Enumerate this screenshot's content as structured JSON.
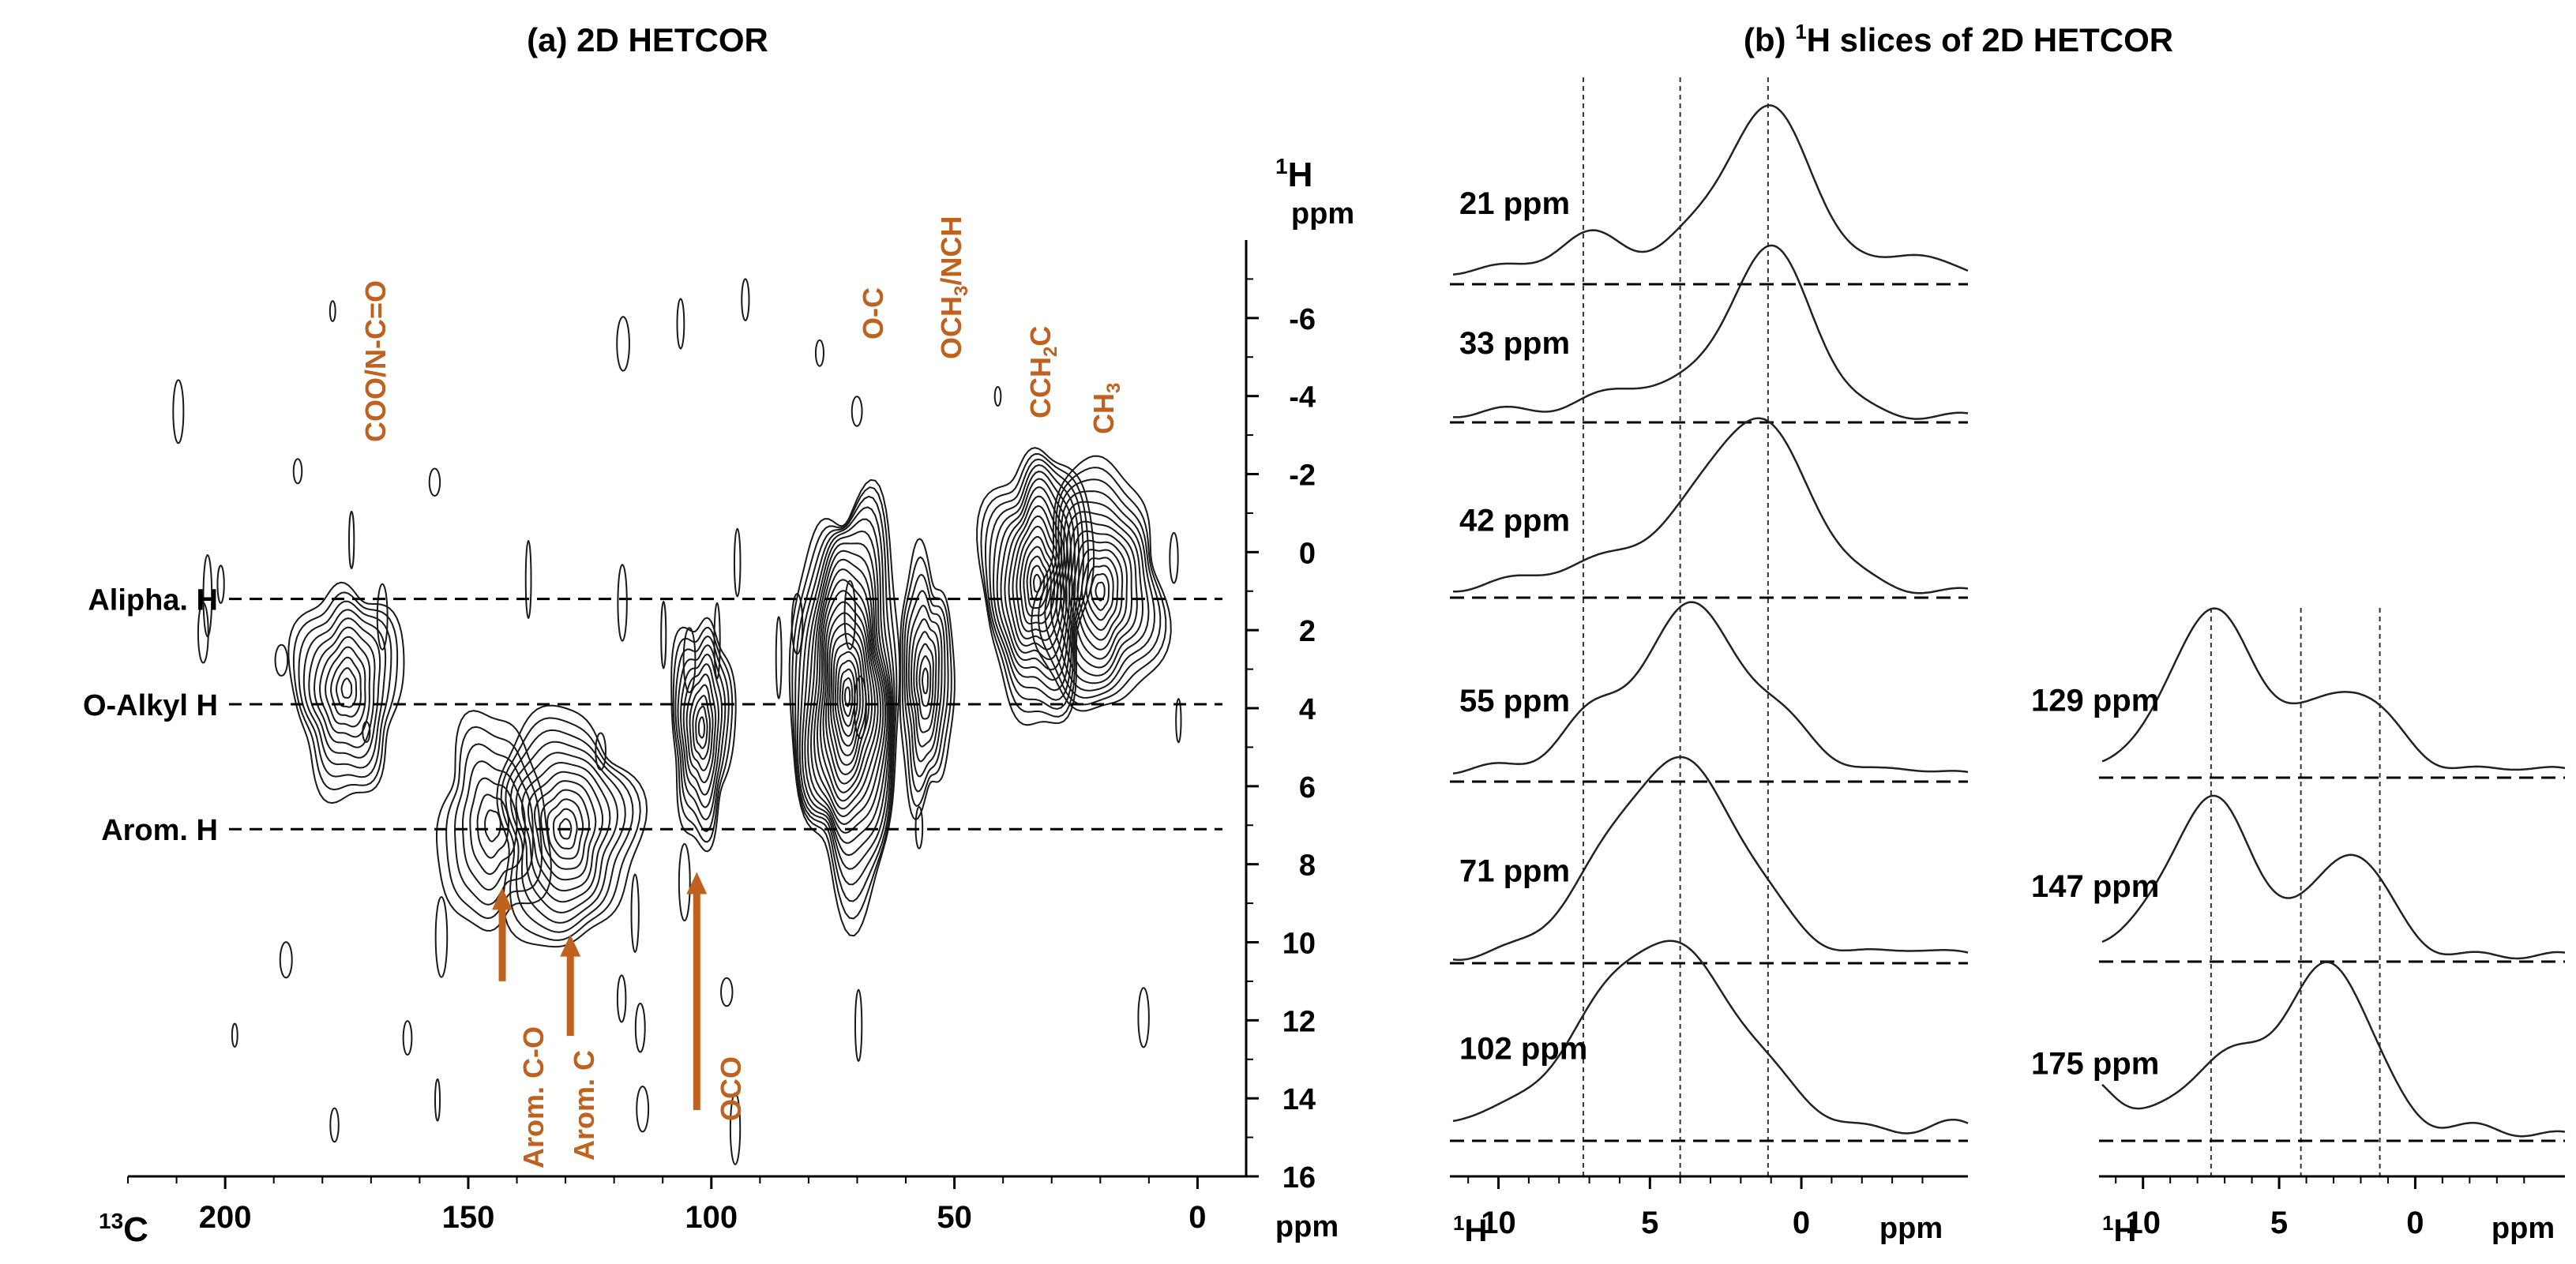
{
  "colors": {
    "annotation": "#c0621f",
    "contour": "#1a1a1a",
    "axis": "#000000"
  },
  "chart_data": [
    {
      "panel": "a",
      "type": "heatmap",
      "subtype": "2D contour plot",
      "title": "(a) 2D HETCOR",
      "xlabel_prefix": "13",
      "xlabel_element": "C",
      "xunit": "ppm",
      "xlim": [
        220,
        -10
      ],
      "xticks": [
        "200",
        "150",
        "100",
        "50",
        "0"
      ],
      "xtick_values": [
        200,
        150,
        100,
        50,
        0
      ],
      "ylabel_prefix": "1",
      "ylabel_element": "H",
      "yunit": "ppm",
      "ylim": [
        -8,
        16
      ],
      "yticks": [
        "-6",
        "-4",
        "-2",
        "0",
        "2",
        "4",
        "6",
        "8",
        "10",
        "12",
        "14",
        "16"
      ],
      "ytick_values": [
        -6,
        -4,
        -2,
        0,
        2,
        4,
        6,
        8,
        10,
        12,
        14,
        16
      ],
      "horizontal_lines": [
        {
          "label": "Alipha. H",
          "h_ppm": 1.2
        },
        {
          "label": "O-Alkyl H",
          "h_ppm": 3.9
        },
        {
          "label": "Arom. H",
          "h_ppm": 7.1
        }
      ],
      "peaks": [
        {
          "c_ppm": 175,
          "h_ppm": 3.5,
          "sx": 7,
          "sy": 1.7,
          "n": 11
        },
        {
          "c_ppm": 130,
          "h_ppm": 7.1,
          "sx": 9,
          "sy": 1.9,
          "n": 12
        },
        {
          "c_ppm": 145,
          "h_ppm": 7.0,
          "sx": 7,
          "sy": 1.7,
          "n": 7
        },
        {
          "c_ppm": 102,
          "h_ppm": 4.5,
          "sx": 4,
          "sy": 1.8,
          "n": 11
        },
        {
          "c_ppm": 72,
          "h_ppm": 3.7,
          "sx": 7,
          "sy": 3.3,
          "n": 22
        },
        {
          "c_ppm": 56,
          "h_ppm": 3.3,
          "sx": 3.5,
          "sy": 2.0,
          "n": 10
        },
        {
          "c_ppm": 33,
          "h_ppm": 0.8,
          "sx": 7,
          "sy": 2.2,
          "n": 16
        },
        {
          "c_ppm": 20,
          "h_ppm": 1.0,
          "sx": 8,
          "sy": 2.0,
          "n": 14
        }
      ],
      "peak_labels": [
        "COO/N-C=O",
        "O-C",
        "OCH3/NCH",
        "CCH2C",
        "CH3"
      ],
      "arrow_labels": [
        {
          "text": "Arom. C-O",
          "c_ppm": 143,
          "h_ppm": 8.6
        },
        {
          "text": "Arom. C",
          "c_ppm": 129,
          "h_ppm": 9.8
        },
        {
          "text": "OCO",
          "c_ppm": 103,
          "h_ppm": 8.2
        }
      ],
      "labels_text": {
        "coo": "COO/N-C=O",
        "oc": "O-C",
        "och_pre": "OCH",
        "och_sub": "3",
        "och_post": "/NCH",
        "cch_pre": "CCH",
        "cch_sub": "2",
        "cch_post": "C",
        "ch_pre": "CH",
        "ch_sub": "3",
        "aromco": "Arom. C-O",
        "aromc": "Arom. C",
        "oco": "OCO"
      }
    },
    {
      "panel": "b",
      "type": "line",
      "title_pre": "(b) ",
      "title_sup": "1",
      "title_post": "H slices of 2D HETCOR",
      "xlabel_prefix": "1",
      "xlabel_element": "H",
      "xunit": "ppm",
      "xlim": [
        11.5,
        -5.5
      ],
      "xticks": [
        "10",
        "5",
        "0"
      ],
      "xtick_values": [
        10,
        5,
        0
      ],
      "reference_lines_ppm": [
        7.2,
        4.0,
        1.1
      ],
      "right_reference_lines_ppm": [
        7.5,
        4.2,
        1.3
      ],
      "series": [
        {
          "name": "21 ppm",
          "column": "left",
          "peaks": [
            {
              "c": 1.1,
              "a": 1.0,
              "w": 1.5
            },
            {
              "c": 7.0,
              "a": 0.26,
              "w": 1.2
            },
            {
              "c": 4.1,
              "a": 0.12,
              "w": 1.0
            },
            {
              "c": 10.5,
              "a": 0.06,
              "w": 1.0
            },
            {
              "c": -3.8,
              "a": 0.15,
              "w": 0.9
            }
          ]
        },
        {
          "name": "33 ppm",
          "column": "left",
          "peaks": [
            {
              "c": 1.0,
              "a": 1.0,
              "w": 1.4
            },
            {
              "c": 5.2,
              "a": 0.18,
              "w": 1.8
            },
            {
              "c": 10.0,
              "a": 0.03,
              "w": 1.0
            }
          ]
        },
        {
          "name": "42 ppm",
          "column": "left",
          "peaks": [
            {
              "c": 1.4,
              "a": 1.0,
              "w": 1.7
            },
            {
              "c": 5.0,
              "a": 0.25,
              "w": 2.2
            },
            {
              "c": 9.0,
              "a": 0.05,
              "w": 1.5
            }
          ]
        },
        {
          "name": "55 ppm",
          "column": "left",
          "peaks": [
            {
              "c": 3.6,
              "a": 1.0,
              "w": 1.7
            },
            {
              "c": 7.2,
              "a": 0.28,
              "w": 1.0
            },
            {
              "c": 0.2,
              "a": 0.2,
              "w": 1.0
            },
            {
              "c": 10.5,
              "a": 0.06,
              "w": 0.8
            },
            {
              "c": -3.5,
              "a": 0.05,
              "w": 0.8
            }
          ]
        },
        {
          "name": "71 ppm",
          "column": "left",
          "peaks": [
            {
              "c": 4.0,
              "a": 1.0,
              "w": 2.1
            },
            {
              "c": 7.0,
              "a": 0.12,
              "w": 1.5
            },
            {
              "c": -3.8,
              "a": 0.05,
              "w": 0.8
            }
          ]
        },
        {
          "name": "102 ppm",
          "column": "left",
          "peaks": [
            {
              "c": 4.6,
              "a": 1.0,
              "w": 2.6
            },
            {
              "c": 11.2,
              "a": 0.06,
              "w": 0.9
            },
            {
              "c": -4.8,
              "a": 0.06,
              "w": 0.8
            }
          ]
        },
        {
          "name": "129 ppm",
          "column": "right",
          "peaks": [
            {
              "c": 7.5,
              "a": 1.0,
              "w": 1.5
            },
            {
              "c": 2.3,
              "a": 0.5,
              "w": 1.5
            },
            {
              "c": 4.8,
              "a": 0.12,
              "w": 1.0
            },
            {
              "c": 11.0,
              "a": 0.06,
              "w": 0.8
            },
            {
              "c": -3.8,
              "a": 0.03,
              "w": 0.8
            }
          ]
        },
        {
          "name": "147 ppm",
          "column": "right",
          "peaks": [
            {
              "c": 7.5,
              "a": 1.0,
              "w": 1.4
            },
            {
              "c": 2.3,
              "a": 0.65,
              "w": 1.3
            },
            {
              "c": 10.5,
              "a": 0.12,
              "w": 1.2
            },
            {
              "c": 4.9,
              "a": 0.12,
              "w": 1.0
            }
          ]
        },
        {
          "name": "175 ppm",
          "column": "right",
          "peaks": [
            {
              "c": 3.0,
              "a": 1.0,
              "w": 1.5
            },
            {
              "c": 6.8,
              "a": 0.48,
              "w": 1.8
            },
            {
              "c": 12.0,
              "a": 0.35,
              "w": 1.0
            },
            {
              "c": -2.0,
              "a": 0.05,
              "w": 1.0
            }
          ]
        }
      ]
    }
  ]
}
